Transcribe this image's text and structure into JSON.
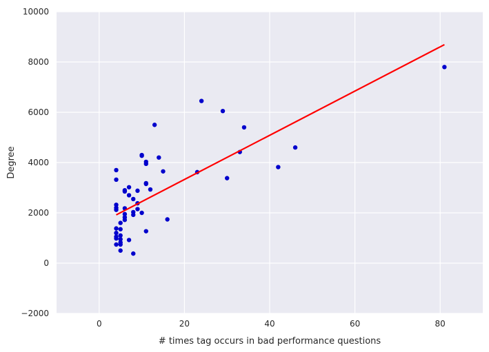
{
  "chart_data": {
    "type": "scatter",
    "title": "",
    "xlabel": "# times tag occurs in bad performance questions",
    "ylabel": "Degree",
    "xlim": [
      -10,
      90
    ],
    "ylim": [
      -2000,
      10000
    ],
    "x_ticks": [
      0,
      20,
      40,
      60,
      80
    ],
    "y_ticks": [
      -2000,
      0,
      2000,
      4000,
      6000,
      8000,
      10000
    ],
    "grid": true,
    "legend": "none",
    "colors": {
      "background": "#eaeaf2",
      "grid": "#ffffff",
      "points": "#0000cc",
      "fit_line": "#ff0000"
    },
    "series": [
      {
        "points": [
          [
            4,
            3700
          ],
          [
            4,
            3320
          ],
          [
            4,
            2320
          ],
          [
            4,
            2200
          ],
          [
            4,
            2120
          ],
          [
            4,
            1380
          ],
          [
            4,
            1200
          ],
          [
            4,
            1050
          ],
          [
            4,
            980
          ],
          [
            4,
            740
          ],
          [
            5,
            1600
          ],
          [
            5,
            1350
          ],
          [
            5,
            1100
          ],
          [
            5,
            950
          ],
          [
            5,
            820
          ],
          [
            5,
            740
          ],
          [
            5,
            500
          ],
          [
            6,
            2900
          ],
          [
            6,
            2850
          ],
          [
            6,
            2180
          ],
          [
            6,
            1950
          ],
          [
            6,
            1820
          ],
          [
            6,
            1720
          ],
          [
            7,
            3020
          ],
          [
            7,
            2700
          ],
          [
            7,
            920
          ],
          [
            8,
            2550
          ],
          [
            8,
            2030
          ],
          [
            8,
            1920
          ],
          [
            8,
            380
          ],
          [
            9,
            2880
          ],
          [
            9,
            2380
          ],
          [
            9,
            2150
          ],
          [
            10,
            4300
          ],
          [
            10,
            4270
          ],
          [
            10,
            2000
          ],
          [
            11,
            4030
          ],
          [
            11,
            3950
          ],
          [
            11,
            3180
          ],
          [
            11,
            3150
          ],
          [
            11,
            1270
          ],
          [
            12,
            2930
          ],
          [
            13,
            5500
          ],
          [
            14,
            4200
          ],
          [
            15,
            3650
          ],
          [
            16,
            1740
          ],
          [
            23,
            3620
          ],
          [
            24,
            6450
          ],
          [
            29,
            6050
          ],
          [
            30,
            3380
          ],
          [
            33,
            4420
          ],
          [
            34,
            5400
          ],
          [
            42,
            3820
          ],
          [
            46,
            4600
          ],
          [
            81,
            7800
          ]
        ]
      }
    ],
    "fit_line": {
      "x": [
        4,
        81
      ],
      "y": [
        1920,
        8690
      ]
    }
  }
}
